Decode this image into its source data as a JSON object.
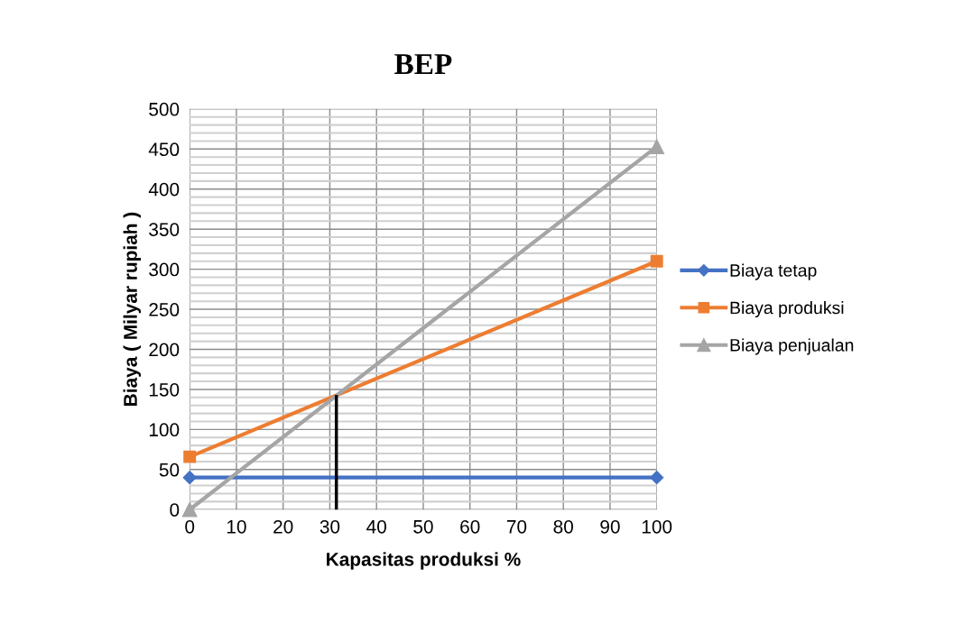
{
  "chart_data": {
    "type": "line",
    "title": "BEP",
    "xlabel": "Kapasitas produksi %",
    "ylabel": "Biaya ( Milyar rupiah )",
    "x": [
      0,
      100
    ],
    "series": [
      {
        "name": "Biaya tetap",
        "color": "#4472c4",
        "values": [
          40,
          40
        ],
        "marker": "diamond"
      },
      {
        "name": "Biaya produksi",
        "color": "#ed7d31",
        "values": [
          66,
          310
        ],
        "marker": "square"
      },
      {
        "name": "Biaya penjualan",
        "color": "#a5a5a5",
        "values": [
          0,
          453
        ],
        "marker": "triangle"
      },
      {
        "color": "#000000",
        "x": [
          31.4,
          31.4
        ],
        "values": [
          0,
          143
        ],
        "marker": "none"
      }
    ],
    "xlim": [
      0,
      100
    ],
    "xticks": [
      0,
      10,
      20,
      30,
      40,
      50,
      60,
      70,
      80,
      90,
      100
    ],
    "ylim": [
      0,
      500
    ],
    "yticks": [
      0,
      {
        "value": 10,
        "label": null
      },
      {
        "value": 20,
        "label": null
      },
      {
        "value": 30,
        "label": null
      },
      {
        "value": 40,
        "label": null
      },
      50,
      {
        "value": 60,
        "label": null
      },
      {
        "value": 70,
        "label": null
      },
      {
        "value": 80,
        "label": null
      },
      {
        "value": 90,
        "label": null
      },
      100,
      {
        "value": 110,
        "label": null
      },
      {
        "value": 120,
        "label": null
      },
      {
        "value": 130,
        "label": null
      },
      {
        "value": 140,
        "label": null
      },
      150,
      {
        "value": 160,
        "label": null
      },
      {
        "value": 170,
        "label": null
      },
      {
        "value": 180,
        "label": null
      },
      {
        "value": 190,
        "label": null
      },
      200,
      {
        "value": 210,
        "label": null
      },
      {
        "value": 220,
        "label": null
      },
      {
        "value": 230,
        "label": null
      },
      {
        "value": 240,
        "label": null
      },
      250,
      {
        "value": 260,
        "label": null
      },
      {
        "value": 270,
        "label": null
      },
      {
        "value": 280,
        "label": null
      },
      {
        "value": 290,
        "label": null
      },
      300,
      {
        "value": 310,
        "label": null
      },
      {
        "value": 320,
        "label": null
      },
      {
        "value": 330,
        "label": null
      },
      {
        "value": 340,
        "label": null
      },
      350,
      {
        "value": 360,
        "label": null
      },
      {
        "value": 370,
        "label": null
      },
      {
        "value": 380,
        "label": null
      },
      {
        "value": 390,
        "label": null
      },
      400,
      {
        "value": 410,
        "label": null
      },
      {
        "value": 420,
        "label": null
      },
      {
        "value": 430,
        "label": null
      },
      {
        "value": 440,
        "label": null
      },
      450,
      {
        "value": 460,
        "label": null
      },
      {
        "value": 470,
        "label": null
      },
      {
        "value": 480,
        "label": null
      },
      {
        "value": 490,
        "label": null
      },
      500
    ],
    "grid": true,
    "legend": "right",
    "line_style": "solid"
  }
}
